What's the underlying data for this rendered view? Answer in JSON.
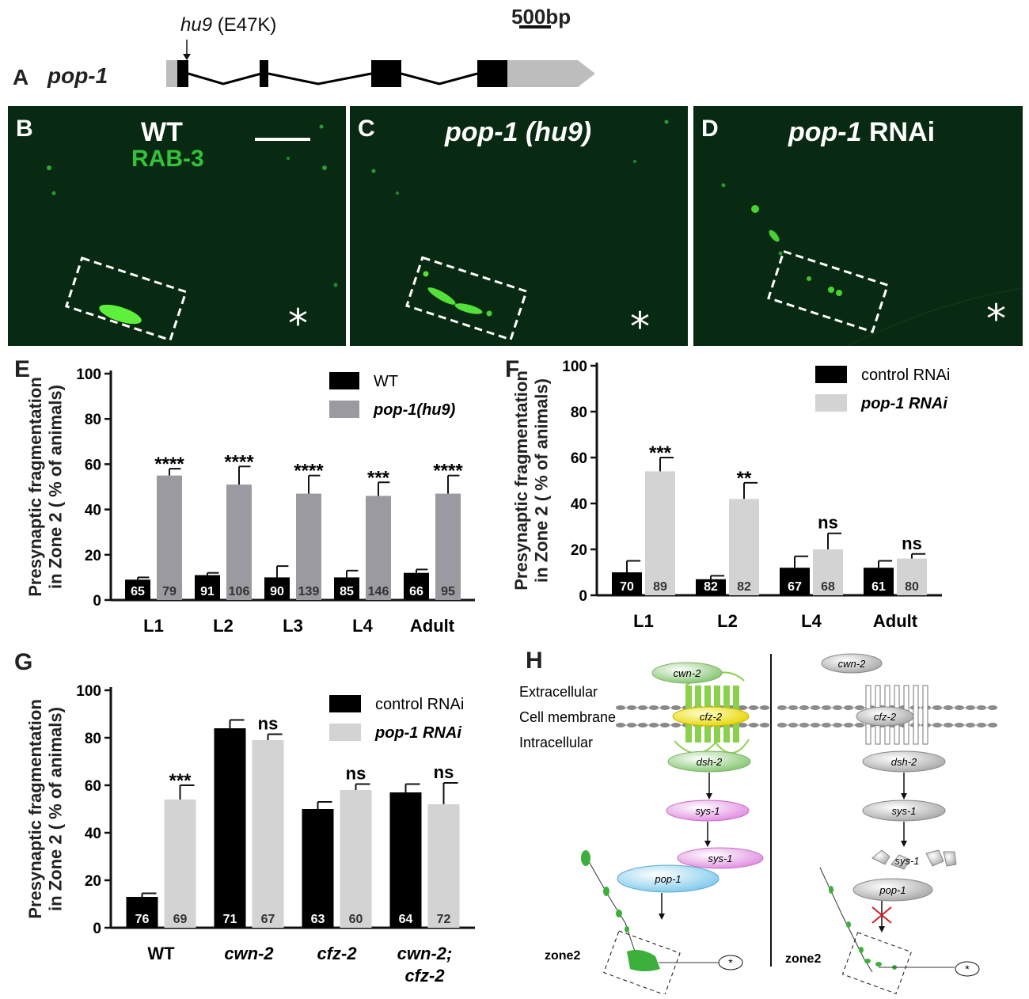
{
  "panel_a": {
    "letter": "A",
    "gene": "pop-1",
    "allele": "hu9",
    "mutation": "(E47K)",
    "scale": "500bp"
  },
  "micrographs": [
    {
      "letter": "B",
      "title": "WT",
      "subtitle": "RAB-3",
      "star": "*"
    },
    {
      "letter": "C",
      "title_italic": "pop-1 (hu9)",
      "star": "*"
    },
    {
      "letter": "D",
      "title_italic": "pop-1",
      "title_rest": " RNAi",
      "star": "*"
    }
  ],
  "chart_data": [
    {
      "panel": "E",
      "type": "bar",
      "ylabel": [
        "Presynaptic  fragmentation",
        "in  Zone 2 ( % of animals)"
      ],
      "ylim": [
        0,
        100
      ],
      "yticks": [
        0,
        20,
        40,
        60,
        80,
        100
      ],
      "categories": [
        "L1",
        "L2",
        "L3",
        "L4",
        "Adult"
      ],
      "series": [
        {
          "name": "WT",
          "color": "#000000",
          "values": [
            9,
            11,
            10,
            10,
            12
          ],
          "errors": [
            1,
            1,
            5,
            3,
            1.5
          ],
          "n": [
            "65",
            "91",
            "90",
            "85",
            "66"
          ]
        },
        {
          "name": "pop-1(hu9)",
          "color": "#9a9aa0",
          "values": [
            55,
            51,
            47,
            46,
            47
          ],
          "errors": [
            3,
            8,
            8,
            6,
            8
          ],
          "n": [
            "79",
            "106",
            "139",
            "146",
            "95"
          ]
        }
      ],
      "significance": [
        "****",
        "****",
        "****",
        "***",
        "****"
      ]
    },
    {
      "panel": "F",
      "type": "bar",
      "ylabel": [
        "Presynaptic  fragmentation",
        "in  Zone 2 ( % of animals)"
      ],
      "ylim": [
        0,
        100
      ],
      "yticks": [
        0,
        20,
        40,
        60,
        80,
        100
      ],
      "categories": [
        "L1",
        "L2",
        "L4",
        "Adult"
      ],
      "series": [
        {
          "name": "control RNAi",
          "color": "#000000",
          "values": [
            10,
            7,
            12,
            12
          ],
          "errors": [
            5,
            1.5,
            5,
            3
          ],
          "n": [
            "70",
            "82",
            "67",
            "61"
          ]
        },
        {
          "name": "pop-1   RNAi",
          "color": "#d3d3d3",
          "values": [
            54,
            42,
            20,
            16
          ],
          "errors": [
            6,
            7,
            7,
            2
          ],
          "n": [
            "89",
            "82",
            "68",
            "80"
          ]
        }
      ],
      "significance": [
        "***",
        "**",
        "ns",
        "ns"
      ]
    },
    {
      "panel": "G",
      "type": "bar",
      "ylabel": [
        "Presynaptic  fragmentation",
        "in  Zone 2 ( % of animals)"
      ],
      "ylim": [
        0,
        100
      ],
      "yticks": [
        0,
        20,
        40,
        60,
        80,
        100
      ],
      "categories": [
        "WT",
        "cwn-2",
        "cfz-2",
        "cwn-2;\ncfz-2"
      ],
      "series": [
        {
          "name": "control RNAi",
          "color": "#000000",
          "values": [
            13,
            84,
            50,
            57
          ],
          "errors": [
            1.5,
            3.5,
            3,
            3.5
          ],
          "n": [
            "76",
            "71",
            "63",
            "64"
          ]
        },
        {
          "name": "pop-1   RNAi",
          "color": "#d3d3d3",
          "values": [
            54,
            79,
            58,
            52
          ],
          "errors": [
            6,
            2.5,
            2.5,
            9
          ],
          "n": [
            "69",
            "67",
            "60",
            "72"
          ]
        }
      ],
      "significance": [
        "***",
        "ns",
        "ns",
        "ns"
      ]
    }
  ],
  "panel_h": {
    "letter": "H",
    "labels": {
      "extra": "Extracellular",
      "membrane": "Cell membrane",
      "intra": "Intracellular"
    },
    "left": {
      "cwn": "cwn-2",
      "cfz": "cfz-2",
      "dsh": "dsh-2",
      "sys1": "sys-1",
      "sys2": "sys-1",
      "pop": "pop-1",
      "zone": "zone2",
      "star": "*"
    },
    "right": {
      "cwn": "cwn-2",
      "cfz": "cfz-2",
      "dsh": "dsh-2",
      "sys1": "sys-1",
      "sys2": "sys-1",
      "pop": "pop-1",
      "zone": "zone2",
      "star": "*"
    }
  }
}
